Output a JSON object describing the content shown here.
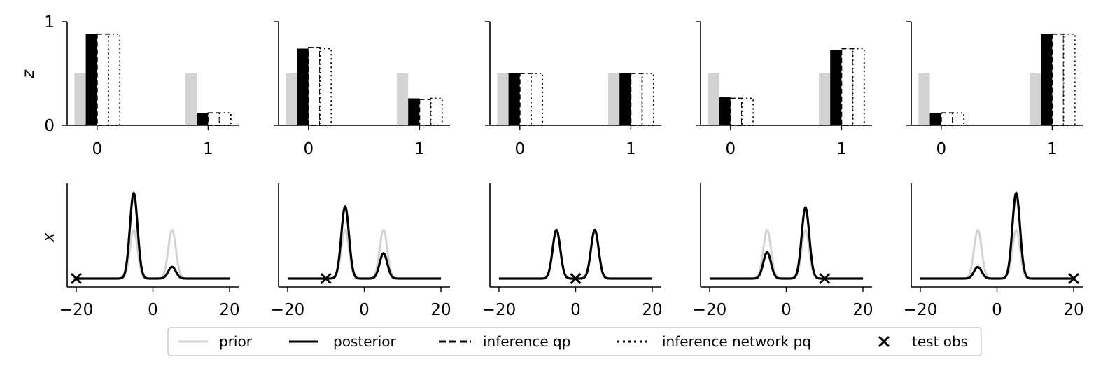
{
  "chart_data": {
    "type": "bar+line",
    "legend": {
      "placement": "bottom-center",
      "entries": [
        {
          "label": "prior",
          "style": "solid-light-gray"
        },
        {
          "label": "posterior",
          "style": "solid-black"
        },
        {
          "label": "inference qp",
          "style": "dashed-black"
        },
        {
          "label": "inference network pq",
          "style": "dotted-black"
        },
        {
          "label": "test obs",
          "style": "x-marker"
        }
      ]
    },
    "colors": {
      "prior": "#d3d3d3",
      "posterior": "#000000"
    },
    "z_row": {
      "ylabel": "z",
      "ylim": [
        0,
        1
      ],
      "yticks": [
        "0",
        "1"
      ],
      "categories": [
        "0",
        "1"
      ],
      "panels": [
        {
          "prior": [
            0.5,
            0.5
          ],
          "posterior": [
            0.88,
            0.12
          ],
          "inference_qp": [
            0.88,
            0.12
          ],
          "inference_network_pq": [
            0.88,
            0.12
          ]
        },
        {
          "prior": [
            0.5,
            0.5
          ],
          "posterior": [
            0.74,
            0.26
          ],
          "inference_qp": [
            0.75,
            0.25
          ],
          "inference_network_pq": [
            0.74,
            0.26
          ]
        },
        {
          "prior": [
            0.5,
            0.5
          ],
          "posterior": [
            0.5,
            0.5
          ],
          "inference_qp": [
            0.5,
            0.5
          ],
          "inference_network_pq": [
            0.5,
            0.5
          ]
        },
        {
          "prior": [
            0.5,
            0.5
          ],
          "posterior": [
            0.27,
            0.73
          ],
          "inference_qp": [
            0.26,
            0.74
          ],
          "inference_network_pq": [
            0.26,
            0.74
          ]
        },
        {
          "prior": [
            0.5,
            0.5
          ],
          "posterior": [
            0.12,
            0.88
          ],
          "inference_qp": [
            0.12,
            0.88
          ],
          "inference_network_pq": [
            0.12,
            0.88
          ]
        }
      ]
    },
    "x_row": {
      "ylabel": "x",
      "xlim": [
        -22,
        22
      ],
      "xticks": [
        "−20",
        "0",
        "20"
      ],
      "x_range": [
        -20,
        20
      ],
      "mixture_means": [
        -5,
        5
      ],
      "mixture_std": 1,
      "prior_weights": [
        0.5,
        0.5
      ],
      "panels": [
        {
          "test_obs": -20,
          "weights": [
            0.88,
            0.12
          ]
        },
        {
          "test_obs": -10,
          "weights": [
            0.74,
            0.26
          ]
        },
        {
          "test_obs": 0,
          "weights": [
            0.5,
            0.5
          ]
        },
        {
          "test_obs": 10,
          "weights": [
            0.27,
            0.73
          ]
        },
        {
          "test_obs": 20,
          "weights": [
            0.12,
            0.88
          ]
        }
      ]
    }
  }
}
